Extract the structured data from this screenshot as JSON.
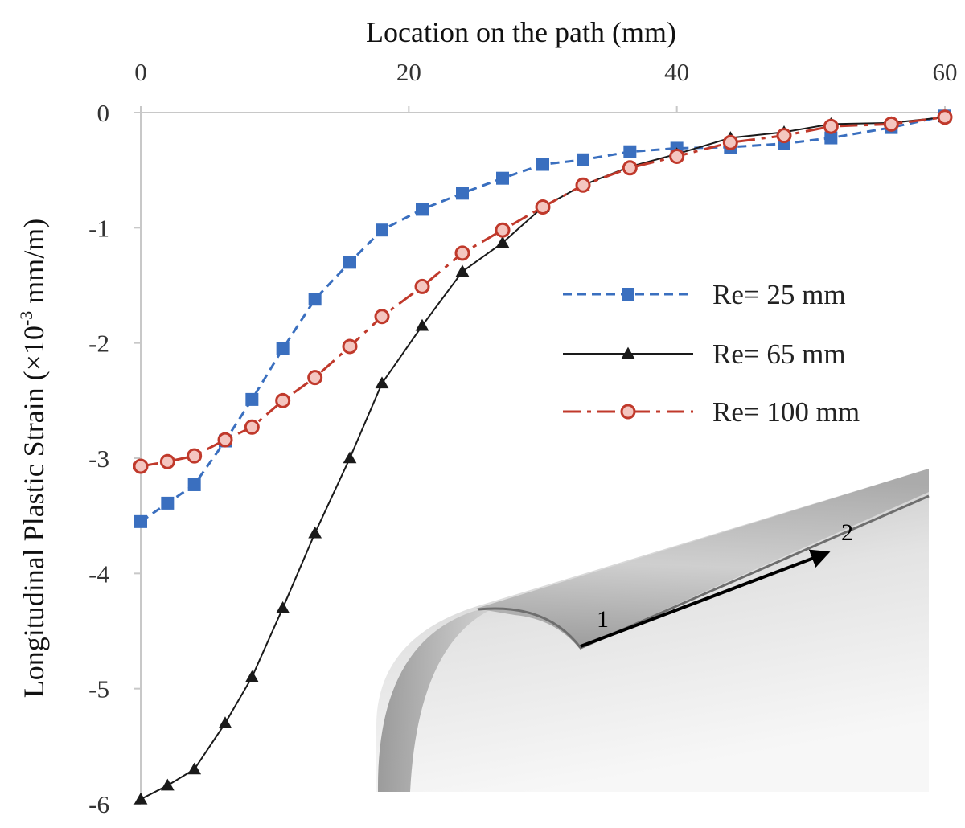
{
  "chart_data": {
    "type": "line",
    "xlabel": "Location on the path (mm)",
    "ylabel_prefix": "Longitudinal Plastic Strain (×10",
    "ylabel_exp": "-3",
    "ylabel_suffix": " mm/m)",
    "xlim": [
      0,
      60
    ],
    "ylim": [
      -6,
      0
    ],
    "x_axis_position": "top",
    "grid": false,
    "legend_position": "right",
    "x_ticks": [
      "0",
      "20",
      "40",
      "60"
    ],
    "y_ticks": [
      "0",
      "-1",
      "-2",
      "-3",
      "-4",
      "-5",
      "-6"
    ],
    "series": [
      {
        "name": "Re= 25 mm",
        "color": "#3a6fbf",
        "marker": "square",
        "line_style": "dashed",
        "x": [
          0,
          2,
          4,
          6.3,
          8.3,
          10.6,
          13,
          15.6,
          18,
          21,
          24,
          27,
          30,
          33,
          36.5,
          40,
          44,
          48,
          51.5,
          56,
          60
        ],
        "y": [
          -3.55,
          -3.39,
          -3.23,
          -2.85,
          -2.49,
          -2.05,
          -1.62,
          -1.3,
          -1.02,
          -0.84,
          -0.7,
          -0.57,
          -0.45,
          -0.41,
          -0.34,
          -0.31,
          -0.3,
          -0.27,
          -0.22,
          -0.13,
          -0.03
        ]
      },
      {
        "name": "Re= 65 mm",
        "color": "#1a1a1a",
        "marker": "triangle",
        "line_style": "solid",
        "x": [
          0,
          2,
          4,
          6.3,
          8.3,
          10.6,
          13,
          15.6,
          18,
          21,
          24,
          27,
          30,
          33,
          36.5,
          40,
          44,
          48,
          51.5,
          56,
          60
        ],
        "y": [
          -5.96,
          -5.84,
          -5.7,
          -5.3,
          -4.9,
          -4.3,
          -3.65,
          -3.0,
          -2.35,
          -1.85,
          -1.38,
          -1.13,
          -0.82,
          -0.63,
          -0.47,
          -0.36,
          -0.22,
          -0.17,
          -0.1,
          -0.09,
          -0.04
        ]
      },
      {
        "name": "Re= 100 mm",
        "color": "#c0392b",
        "marker": "circle",
        "line_style": "dashdot",
        "x": [
          0,
          2,
          4,
          6.3,
          8.3,
          10.6,
          13,
          15.6,
          18,
          21,
          24,
          27,
          30,
          33,
          36.5,
          40,
          44,
          48,
          51.5,
          56,
          60
        ],
        "y": [
          -3.07,
          -3.03,
          -2.98,
          -2.84,
          -2.73,
          -2.5,
          -2.3,
          -2.03,
          -1.77,
          -1.51,
          -1.22,
          -1.02,
          -0.82,
          -0.63,
          -0.48,
          -0.38,
          -0.26,
          -0.2,
          -0.12,
          -0.1,
          -0.04
        ]
      }
    ]
  },
  "inset": {
    "label_start": "1",
    "label_end": "2"
  }
}
